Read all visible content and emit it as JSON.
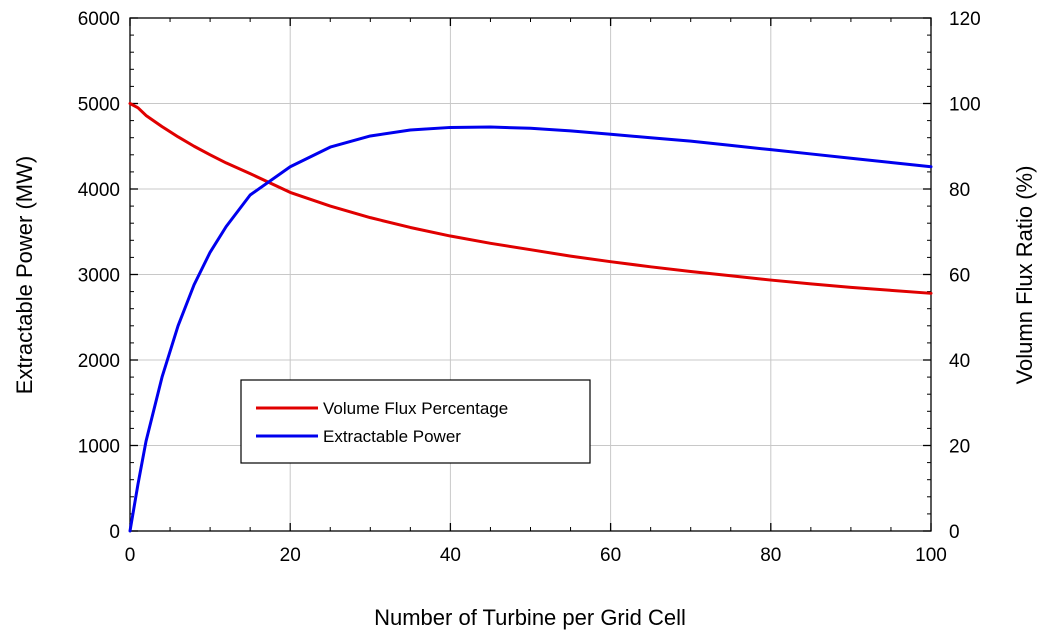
{
  "chart_data": {
    "type": "line",
    "title": "",
    "xlabel": "Number of Turbine per Grid Cell",
    "ylabel_left": "Extractable Power (MW)",
    "ylabel_right": "Volumn Flux Ratio (%)",
    "xlim": [
      0,
      100
    ],
    "ylim_left": [
      0,
      6000
    ],
    "ylim_right": [
      0,
      120
    ],
    "x_ticks": [
      "0",
      "20",
      "40",
      "60",
      "80",
      "100"
    ],
    "y_left_ticks": [
      "0",
      "1000",
      "2000",
      "3000",
      "4000",
      "5000",
      "6000"
    ],
    "y_right_ticks": [
      "0",
      "20",
      "40",
      "60",
      "80",
      "100",
      "120"
    ],
    "grid": true,
    "legend_position": "lower-left",
    "series": [
      {
        "name": "Volume Flux Percentage",
        "color": "#e00000",
        "axis": "right",
        "x": [
          0,
          1,
          2,
          4,
          6,
          8,
          10,
          12,
          15,
          20,
          25,
          30,
          35,
          40,
          45,
          50,
          55,
          60,
          65,
          70,
          75,
          80,
          85,
          90,
          95,
          100
        ],
        "values": [
          100,
          99,
          97.2,
          94.6,
          92.2,
          90.0,
          88.0,
          86.1,
          83.6,
          79.2,
          76.0,
          73.3,
          71.0,
          69.0,
          67.3,
          65.8,
          64.3,
          63.0,
          61.8,
          60.7,
          59.7,
          58.7,
          57.8,
          57.0,
          56.3,
          55.6
        ]
      },
      {
        "name": "Extractable Power",
        "color": "#0000ee",
        "axis": "left",
        "x": [
          0,
          1,
          2,
          4,
          6,
          8,
          10,
          12,
          15,
          20,
          25,
          30,
          35,
          40,
          45,
          50,
          55,
          60,
          65,
          70,
          75,
          80,
          85,
          90,
          95,
          100
        ],
        "values": [
          0,
          550,
          1050,
          1800,
          2400,
          2880,
          3260,
          3560,
          3930,
          4260,
          4490,
          4620,
          4690,
          4720,
          4725,
          4710,
          4680,
          4640,
          4600,
          4560,
          4510,
          4460,
          4410,
          4360,
          4310,
          4260
        ]
      }
    ]
  }
}
